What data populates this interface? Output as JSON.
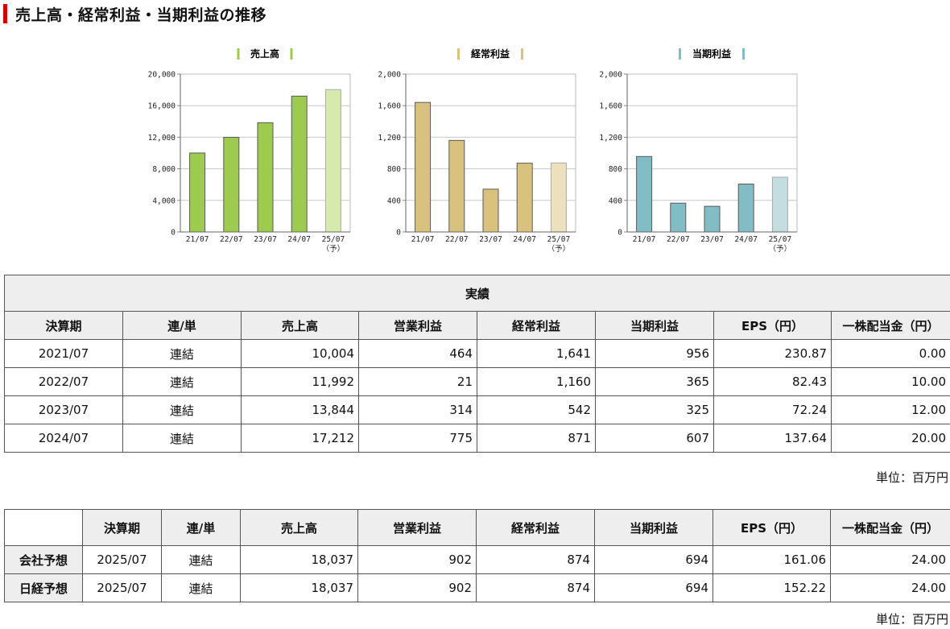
{
  "page": {
    "title": "売上高・経常利益・当期利益の推移"
  },
  "chart_data": [
    {
      "type": "bar",
      "legend": "売上高",
      "color": "#9ccb4d",
      "forecast_color": "#d6eaae",
      "categories": [
        "21/07",
        "22/07",
        "23/07",
        "24/07",
        "25/07"
      ],
      "forecast_note": "（予）",
      "values": [
        10004,
        11992,
        13844,
        17212,
        18037
      ],
      "ylim": [
        0,
        20000
      ],
      "yticks": [
        "0",
        "4,000",
        "8,000",
        "12,000",
        "16,000",
        "20,000"
      ],
      "grid": true
    },
    {
      "type": "bar",
      "legend": "経常利益",
      "color": "#d9c27d",
      "forecast_color": "#ede1bd",
      "categories": [
        "21/07",
        "22/07",
        "23/07",
        "24/07",
        "25/07"
      ],
      "forecast_note": "（予）",
      "values": [
        1641,
        1160,
        542,
        871,
        874
      ],
      "ylim": [
        0,
        2000
      ],
      "yticks": [
        "0",
        "400",
        "800",
        "1,200",
        "1,600",
        "2,000"
      ],
      "grid": true
    },
    {
      "type": "bar",
      "legend": "当期利益",
      "color": "#82bcc4",
      "forecast_color": "#c3dde1",
      "categories": [
        "21/07",
        "22/07",
        "23/07",
        "24/07",
        "25/07"
      ],
      "forecast_note": "（予）",
      "values": [
        956,
        365,
        325,
        607,
        694
      ],
      "ylim": [
        0,
        2000
      ],
      "yticks": [
        "0",
        "400",
        "800",
        "1,200",
        "1,600",
        "2,000"
      ],
      "grid": true
    }
  ],
  "results_table": {
    "caption": "実績",
    "headers": [
      "決算期",
      "連/単",
      "売上高",
      "営業利益",
      "経常利益",
      "当期利益",
      "EPS（円）",
      "一株配当金（円）"
    ],
    "rows": [
      [
        "2021/07",
        "連結",
        "10,004",
        "464",
        "1,641",
        "956",
        "230.87",
        "0.00"
      ],
      [
        "2022/07",
        "連結",
        "11,992",
        "21",
        "1,160",
        "365",
        "82.43",
        "10.00"
      ],
      [
        "2023/07",
        "連結",
        "13,844",
        "314",
        "542",
        "325",
        "72.24",
        "12.00"
      ],
      [
        "2024/07",
        "連結",
        "17,212",
        "775",
        "871",
        "607",
        "137.64",
        "20.00"
      ]
    ],
    "unit": "単位：百万円"
  },
  "forecast_table": {
    "headers": [
      "決算期",
      "連/単",
      "売上高",
      "営業利益",
      "経常利益",
      "当期利益",
      "EPS（円）",
      "一株配当金（円）"
    ],
    "rows": [
      [
        "会社予想",
        "2025/07",
        "連結",
        "18,037",
        "902",
        "874",
        "694",
        "161.06",
        "24.00"
      ],
      [
        "日経予想",
        "2025/07",
        "連結",
        "18,037",
        "902",
        "874",
        "694",
        "152.22",
        "24.00"
      ]
    ],
    "unit": "単位：百万円"
  }
}
